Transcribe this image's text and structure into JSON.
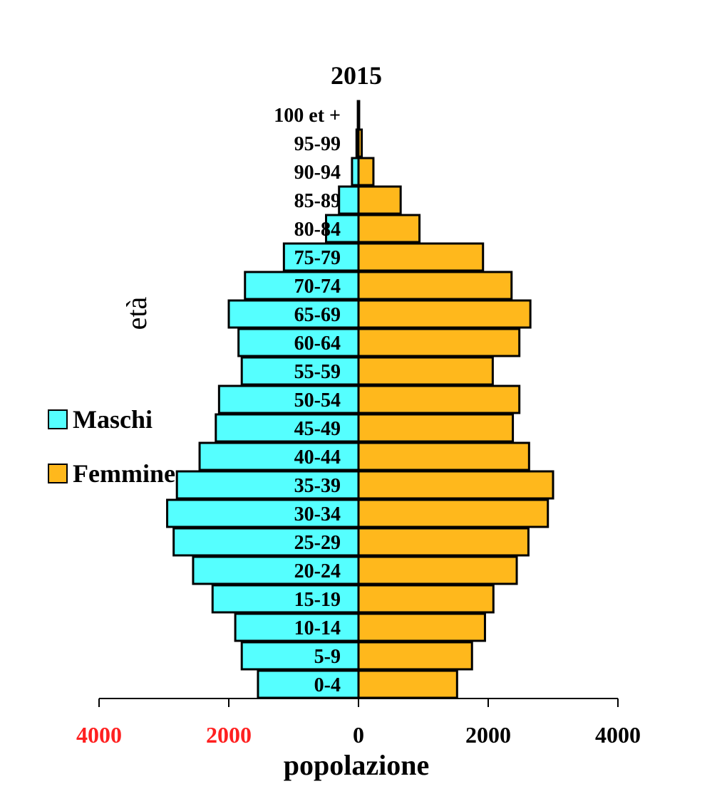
{
  "chart_data": {
    "type": "bar",
    "orientation": "horizontal",
    "title": "2015",
    "xlabel": "popolazione",
    "ylabel": "età",
    "categories": [
      "0-4",
      "5-9",
      "10-14",
      "15-19",
      "20-24",
      "25-29",
      "30-34",
      "35-39",
      "40-44",
      "45-49",
      "50-54",
      "55-59",
      "60-64",
      "65-69",
      "70-74",
      "75-79",
      "80-84",
      "85-89",
      "90-94",
      "95-99",
      "100 et +"
    ],
    "series": [
      {
        "name": "Maschi",
        "color": "#55ffff",
        "values": [
          1550,
          1800,
          1900,
          2250,
          2550,
          2850,
          2950,
          2800,
          2450,
          2200,
          2150,
          1800,
          1850,
          2000,
          1750,
          1150,
          500,
          300,
          100,
          30,
          10
        ]
      },
      {
        "name": "Femmine",
        "color": "#ffb81c",
        "values": [
          1520,
          1750,
          1950,
          2080,
          2440,
          2620,
          2920,
          3000,
          2630,
          2380,
          2480,
          2070,
          2480,
          2650,
          2360,
          1920,
          940,
          650,
          230,
          50,
          10
        ]
      }
    ],
    "xlim": [
      -4000,
      4000
    ],
    "xticks": [
      -4000,
      -2000,
      0,
      2000,
      4000
    ],
    "xtick_labels": [
      "4000",
      "2000",
      "0",
      "2000",
      "4000"
    ],
    "xtick_colors": [
      "#ff2020",
      "#ff2020",
      "#000000",
      "#000000",
      "#000000"
    ],
    "grid": false,
    "legend": "left"
  }
}
